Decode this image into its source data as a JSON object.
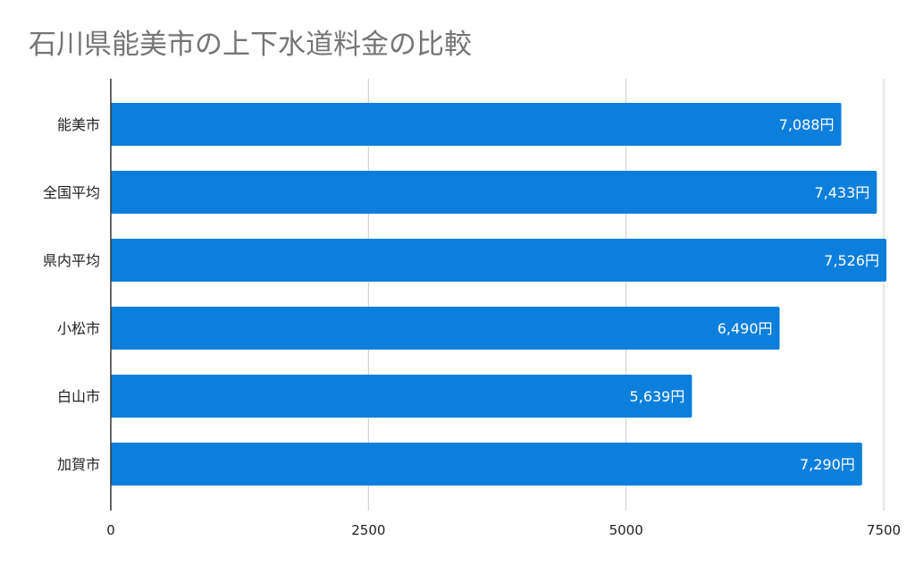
{
  "chart_data": {
    "type": "bar",
    "orientation": "horizontal",
    "title": "石川県能美市の上下水道料金の比較",
    "categories": [
      "能美市",
      "全国平均",
      "県内平均",
      "小松市",
      "白山市",
      "加賀市"
    ],
    "values": [
      7088,
      7433,
      7526,
      6490,
      5639,
      7290
    ],
    "value_labels": [
      "7,088円",
      "7,433円",
      "7,526円",
      "6,490円",
      "5,639円",
      "7,290円"
    ],
    "xlim": [
      0,
      7500
    ],
    "x_ticks": [
      0,
      2500,
      5000,
      7500
    ],
    "x_tick_labels": [
      "0",
      "2500",
      "5000",
      "7500"
    ],
    "grid": true,
    "bar_color": "#0b7fdb",
    "label_color": "#ffffff"
  }
}
